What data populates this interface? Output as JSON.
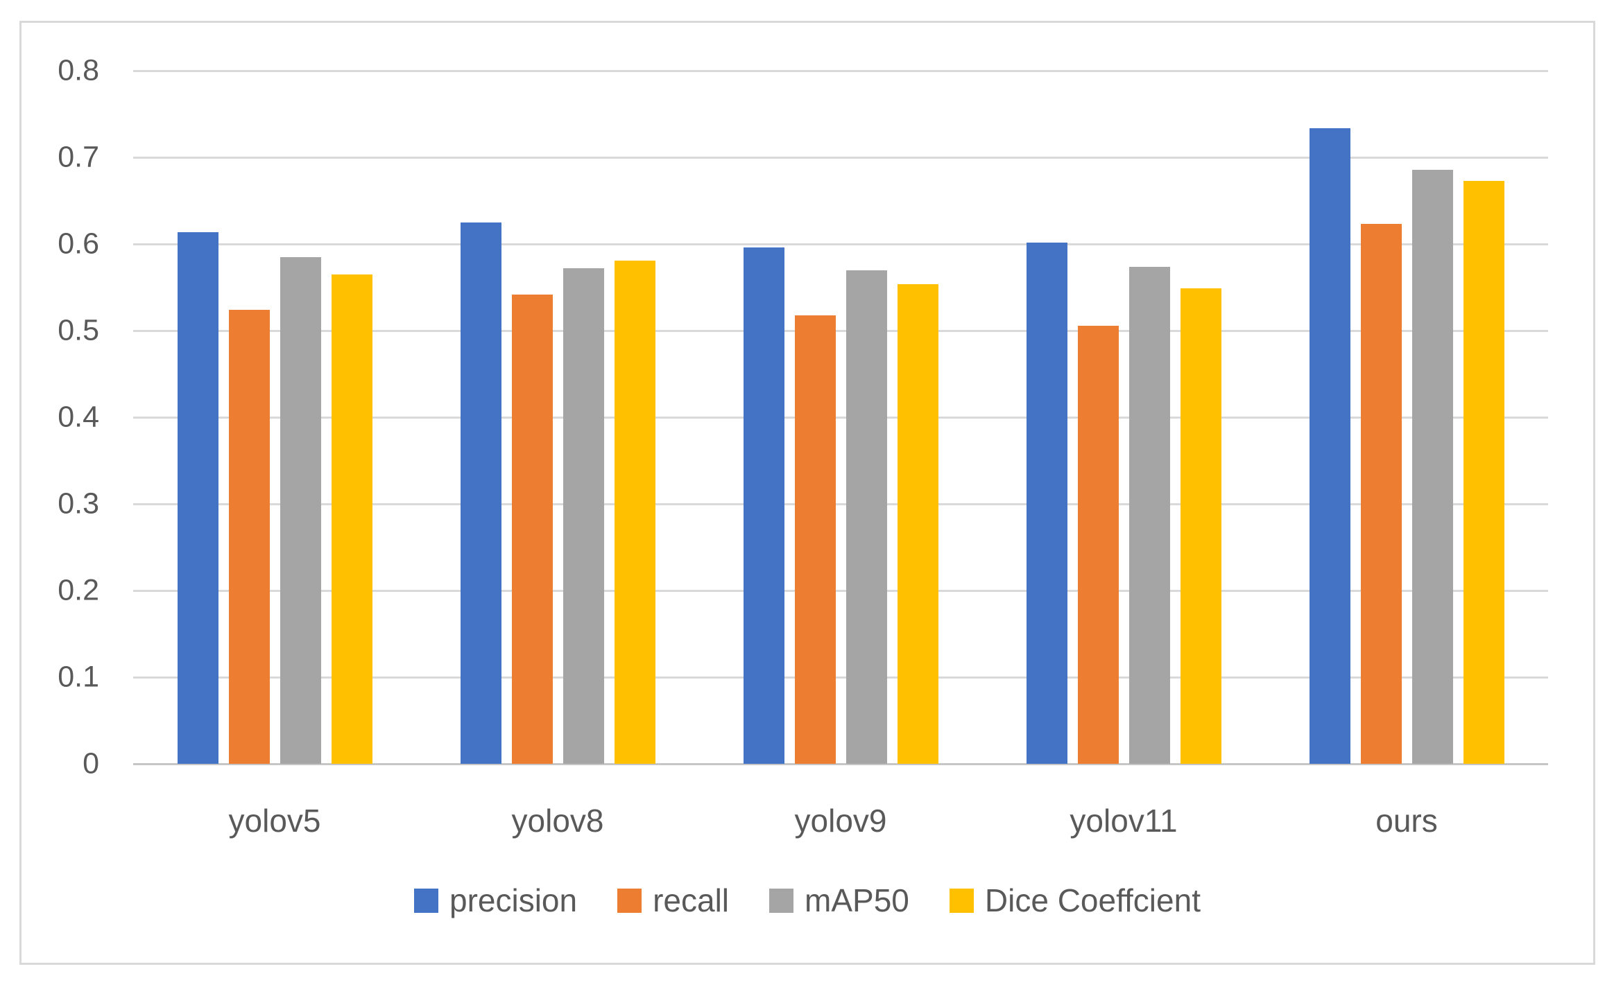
{
  "figure": {
    "background": "#FFFFFF",
    "border_color": "#D9D9D9",
    "gridline_color": "#D9D9D9",
    "text_color": "#595959"
  },
  "chart_data": {
    "type": "bar",
    "title": "",
    "xlabel": "",
    "ylabel": "",
    "categories": [
      "yolov5",
      "yolov8",
      "yolov9",
      "yolov11",
      "ours"
    ],
    "series": [
      {
        "name": "precision",
        "color": "#4472C4",
        "values": [
          0.614,
          0.625,
          0.596,
          0.602,
          0.734
        ]
      },
      {
        "name": "recall",
        "color": "#ED7D31",
        "values": [
          0.524,
          0.542,
          0.518,
          0.506,
          0.623
        ]
      },
      {
        "name": "mAP50",
        "color": "#A5A5A5",
        "values": [
          0.585,
          0.572,
          0.57,
          0.574,
          0.686
        ]
      },
      {
        "name": "Dice Coeffcient",
        "color": "#FFC000",
        "values": [
          0.565,
          0.581,
          0.554,
          0.549,
          0.673
        ]
      }
    ],
    "ylim": [
      0,
      0.8
    ],
    "yticks": [
      0,
      0.1,
      0.2,
      0.3,
      0.4,
      0.5,
      0.6,
      0.7,
      0.8
    ],
    "ytick_labels": [
      "0",
      "0.1",
      "0.2",
      "0.3",
      "0.4",
      "0.5",
      "0.6",
      "0.7",
      "0.8"
    ],
    "grid": true,
    "legend_position": "bottom"
  }
}
